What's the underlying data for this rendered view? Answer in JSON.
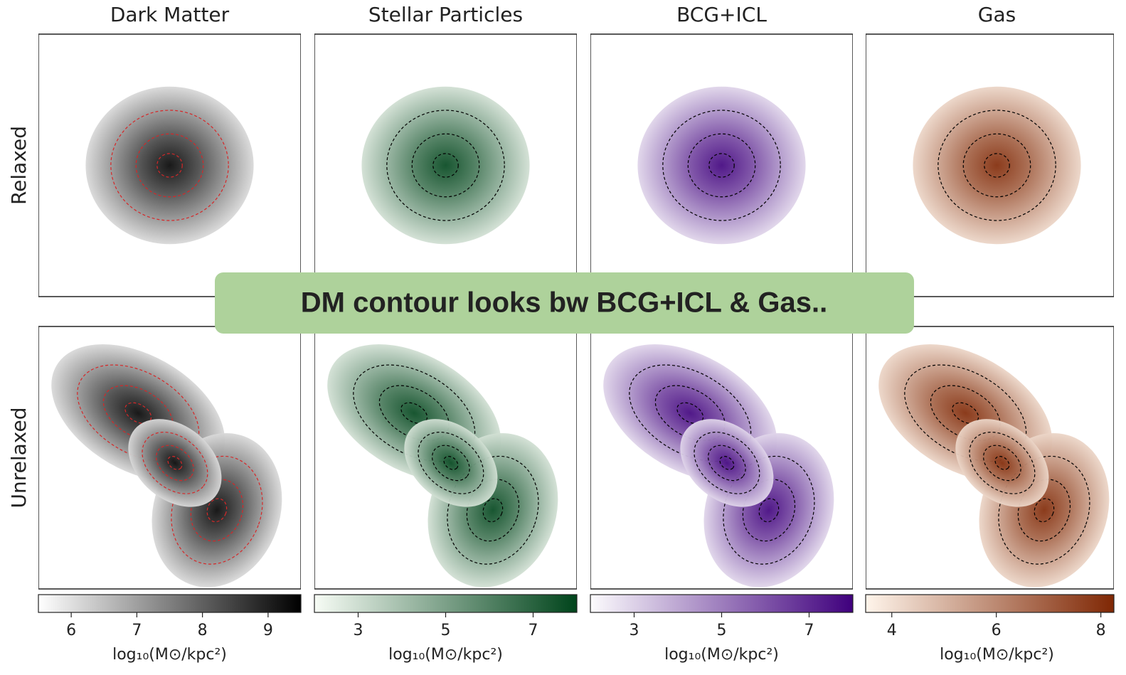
{
  "rows": [
    "Relaxed",
    "Unrelaxed"
  ],
  "columns": [
    {
      "title": "Dark Matter",
      "colors": [
        "#ffffff",
        "#000000"
      ],
      "contour_color": "#d62728",
      "colorbar": {
        "lim": [
          5.5,
          9.5
        ],
        "ticks": [
          6,
          7,
          8,
          9
        ],
        "label": "log₁₀(M⊙/kpc²)"
      }
    },
    {
      "title": "Stellar Particles",
      "colors": [
        "#f7fcf5",
        "#00441b"
      ],
      "contour_color": "#000000",
      "colorbar": {
        "lim": [
          2,
          8
        ],
        "ticks": [
          3,
          5,
          7
        ],
        "label": "log₁₀(M⊙/kpc²)"
      }
    },
    {
      "title": "BCG+ICL",
      "colors": [
        "#fcfbfd",
        "#3f007d"
      ],
      "contour_color": "#000000",
      "colorbar": {
        "lim": [
          2,
          8
        ],
        "ticks": [
          3,
          5,
          7
        ],
        "label": "log₁₀(M⊙/kpc²)"
      }
    },
    {
      "title": "Gas",
      "colors": [
        "#fff5eb",
        "#7f2704"
      ],
      "contour_color": "#000000",
      "colorbar": {
        "lim": [
          3.5,
          8.25
        ],
        "ticks": [
          4,
          6,
          8
        ],
        "label": "log₁₀(M⊙/kpc²)"
      }
    }
  ],
  "banner": "DM contour looks bw BCG+ICL & Gas.."
}
